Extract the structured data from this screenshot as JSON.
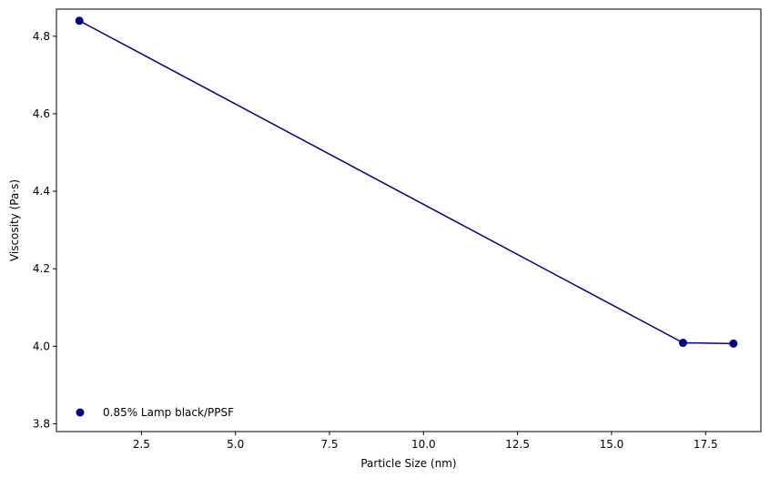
{
  "chart_data": {
    "type": "line",
    "title": "",
    "xlabel": "Particle Size (nm)",
    "ylabel": "Viscosity (Pa·s)",
    "xlim": [
      0.24,
      18.97
    ],
    "ylim": [
      3.78,
      4.87
    ],
    "xticks": [
      2.5,
      5.0,
      7.5,
      10.0,
      12.5,
      15.0,
      17.5
    ],
    "xtick_labels": [
      "2.5",
      "5.0",
      "7.5",
      "10.0",
      "12.5",
      "15.0",
      "17.5"
    ],
    "yticks": [
      3.8,
      4.0,
      4.2,
      4.4,
      4.6,
      4.8
    ],
    "ytick_labels": [
      "3.8",
      "4.0",
      "4.2",
      "4.4",
      "4.6",
      "4.8"
    ],
    "grid": false,
    "legend_position": "lower-left",
    "series": [
      {
        "name": "0.85% Lamp black/PPSF",
        "color": "#00008b",
        "marker": "circle",
        "x": [
          0.85,
          16.9,
          18.24
        ],
        "y": [
          4.84,
          4.009,
          4.007
        ]
      }
    ]
  }
}
